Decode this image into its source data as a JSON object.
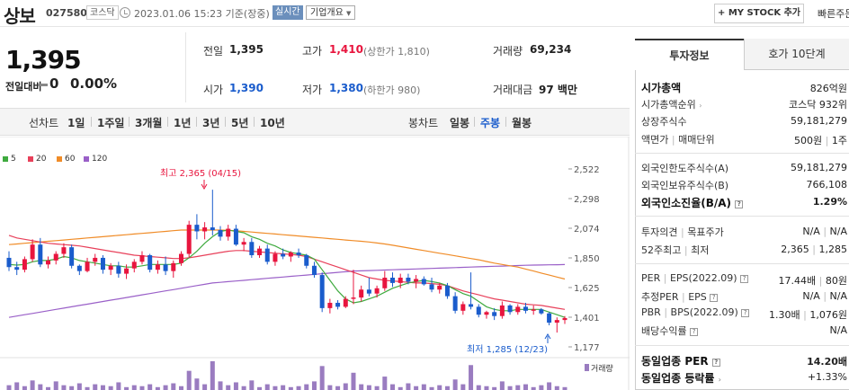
{
  "header": {
    "stock_name": "상보",
    "stock_code": "027580",
    "market": "코스닥",
    "datetime": "2023.01.06 15:23 기준(장중)",
    "realtime": "실시간",
    "corp_overview": "기업개요",
    "mystock": "+ MY STOCK 추가",
    "fast_order": "빠른주문"
  },
  "price": {
    "current": "1,395",
    "prev_label": "전일대비",
    "change": "0",
    "change_pct": "0.00%"
  },
  "quotes": {
    "prev_close_label": "전일",
    "prev_close": "1,395",
    "high_label": "고가",
    "high": "1,410",
    "upper_limit": "(상한가 1,810)",
    "volume_label": "거래량",
    "volume": "69,234",
    "open_label": "시가",
    "open": "1,390",
    "low_label": "저가",
    "low": "1,380",
    "lower_limit": "(하한가 980)",
    "amount_label": "거래대금",
    "amount": "97 백만"
  },
  "periods": {
    "line_label": "선차트",
    "items": [
      "1일",
      "1주일",
      "3개월",
      "1년",
      "3년",
      "5년",
      "10년"
    ],
    "candle_label": "봉차트",
    "candle_items": [
      "일봉",
      "주봉",
      "월봉"
    ],
    "candle_active": "주봉"
  },
  "chart_data": {
    "type": "line",
    "legend": [
      "5",
      "20",
      "60",
      "120"
    ],
    "colors": {
      "ma5": "#3faa3f",
      "ma20": "#e8405a",
      "ma60": "#f08c28",
      "ma120": "#9a60c8",
      "up": "#e8153e",
      "down": "#1a5ccc",
      "volume": "#9a7cc0"
    },
    "y_ticks": [
      "2,522",
      "2,298",
      "2,074",
      "1,850",
      "1,625",
      "1,401",
      "1,177"
    ],
    "ylim": [
      1177,
      2522
    ],
    "max_label": "최고 2,365 (04/15)",
    "min_label": "최저 1,285 (12/23)",
    "volume_label": "거래량",
    "candles": [
      [
        1850,
        1900,
        1750,
        1780
      ],
      [
        1780,
        1820,
        1720,
        1760
      ],
      [
        1760,
        1860,
        1740,
        1840
      ],
      [
        1840,
        1990,
        1820,
        1950
      ],
      [
        1950,
        2000,
        1780,
        1800
      ],
      [
        1800,
        1860,
        1770,
        1830
      ],
      [
        1830,
        1900,
        1800,
        1880
      ],
      [
        1880,
        1960,
        1850,
        1930
      ],
      [
        1930,
        1950,
        1770,
        1790
      ],
      [
        1790,
        1800,
        1720,
        1750
      ],
      [
        1750,
        1850,
        1740,
        1820
      ],
      [
        1820,
        1880,
        1790,
        1850
      ],
      [
        1850,
        1870,
        1730,
        1760
      ],
      [
        1760,
        1810,
        1720,
        1790
      ],
      [
        1790,
        1820,
        1700,
        1730
      ],
      [
        1730,
        1800,
        1690,
        1770
      ],
      [
        1770,
        1840,
        1740,
        1820
      ],
      [
        1820,
        1900,
        1800,
        1870
      ],
      [
        1870,
        1880,
        1740,
        1760
      ],
      [
        1760,
        1830,
        1730,
        1800
      ],
      [
        1800,
        1860,
        1720,
        1750
      ],
      [
        1750,
        1830,
        1700,
        1810
      ],
      [
        1810,
        1900,
        1790,
        1880
      ],
      [
        1880,
        2130,
        1850,
        2100
      ],
      [
        2100,
        2180,
        1990,
        2050
      ],
      [
        2050,
        2120,
        1990,
        2080
      ],
      [
        2080,
        2365,
        2020,
        2060
      ],
      [
        2060,
        2090,
        1980,
        2010
      ],
      [
        2010,
        2100,
        1980,
        2070
      ],
      [
        2070,
        2100,
        1940,
        1950
      ],
      [
        1950,
        2000,
        1900,
        1970
      ],
      [
        1970,
        2000,
        1850,
        1870
      ],
      [
        1870,
        1940,
        1850,
        1920
      ],
      [
        1920,
        1950,
        1800,
        1820
      ],
      [
        1820,
        1900,
        1790,
        1880
      ],
      [
        1880,
        1920,
        1840,
        1860
      ],
      [
        1860,
        1900,
        1820,
        1890
      ],
      [
        1890,
        1920,
        1850,
        1870
      ],
      [
        1870,
        1880,
        1770,
        1790
      ],
      [
        1790,
        1820,
        1700,
        1720
      ],
      [
        1720,
        1740,
        1440,
        1470
      ],
      [
        1470,
        1540,
        1430,
        1510
      ],
      [
        1510,
        1530,
        1460,
        1480
      ],
      [
        1480,
        1560,
        1470,
        1540
      ],
      [
        1540,
        1760,
        1500,
        1550
      ],
      [
        1550,
        1640,
        1520,
        1610
      ],
      [
        1610,
        1700,
        1560,
        1580
      ],
      [
        1580,
        1640,
        1550,
        1620
      ],
      [
        1620,
        1750,
        1600,
        1700
      ],
      [
        1700,
        1740,
        1630,
        1660
      ],
      [
        1660,
        1730,
        1620,
        1700
      ],
      [
        1700,
        1730,
        1650,
        1670
      ],
      [
        1670,
        1720,
        1620,
        1690
      ],
      [
        1690,
        1710,
        1640,
        1650
      ],
      [
        1650,
        1700,
        1590,
        1610
      ],
      [
        1610,
        1660,
        1580,
        1640
      ],
      [
        1640,
        1660,
        1540,
        1560
      ],
      [
        1560,
        1590,
        1430,
        1450
      ],
      [
        1450,
        1520,
        1420,
        1500
      ],
      [
        1500,
        1740,
        1460,
        1480
      ],
      [
        1480,
        1500,
        1400,
        1420
      ],
      [
        1420,
        1450,
        1390,
        1440
      ],
      [
        1440,
        1470,
        1380,
        1410
      ],
      [
        1410,
        1520,
        1390,
        1490
      ],
      [
        1490,
        1500,
        1420,
        1440
      ],
      [
        1440,
        1500,
        1420,
        1480
      ],
      [
        1480,
        1510,
        1430,
        1450
      ],
      [
        1450,
        1490,
        1420,
        1460
      ],
      [
        1460,
        1470,
        1420,
        1430
      ],
      [
        1430,
        1440,
        1340,
        1360
      ],
      [
        1360,
        1400,
        1285,
        1380
      ],
      [
        1380,
        1410,
        1350,
        1395
      ]
    ],
    "ma5": [
      1800,
      1795,
      1800,
      1820,
      1830,
      1830,
      1840,
      1860,
      1850,
      1830,
      1820,
      1810,
      1800,
      1790,
      1790,
      1780,
      1780,
      1790,
      1800,
      1800,
      1800,
      1800,
      1810,
      1850,
      1900,
      1960,
      2010,
      2050,
      2060,
      2050,
      2040,
      2010,
      1990,
      1960,
      1940,
      1910,
      1890,
      1880,
      1870,
      1840,
      1760,
      1680,
      1600,
      1540,
      1510,
      1520,
      1540,
      1560,
      1590,
      1620,
      1640,
      1660,
      1670,
      1680,
      1670,
      1660,
      1640,
      1610,
      1580,
      1560,
      1520,
      1480,
      1460,
      1450,
      1450,
      1460,
      1460,
      1460,
      1460,
      1440,
      1420,
      1400
    ],
    "ma20": [
      2020,
      2000,
      1990,
      1980,
      1970,
      1960,
      1955,
      1950,
      1945,
      1940,
      1930,
      1920,
      1910,
      1900,
      1890,
      1880,
      1870,
      1865,
      1860,
      1855,
      1850,
      1845,
      1845,
      1850,
      1860,
      1870,
      1880,
      1890,
      1900,
      1905,
      1905,
      1900,
      1895,
      1890,
      1885,
      1880,
      1875,
      1870,
      1860,
      1840,
      1820,
      1800,
      1780,
      1760,
      1740,
      1720,
      1700,
      1690,
      1680,
      1675,
      1670,
      1665,
      1660,
      1660,
      1655,
      1650,
      1640,
      1620,
      1600,
      1585,
      1570,
      1555,
      1540,
      1530,
      1520,
      1510,
      1500,
      1495,
      1490,
      1480,
      1470,
      1460
    ],
    "ma60": [
      1950,
      1955,
      1960,
      1965,
      1970,
      1975,
      1980,
      1985,
      1990,
      1995,
      2000,
      2005,
      2010,
      2015,
      2020,
      2025,
      2030,
      2035,
      2040,
      2045,
      2050,
      2055,
      2060,
      2060,
      2060,
      2060,
      2060,
      2060,
      2058,
      2055,
      2050,
      2045,
      2040,
      2035,
      2030,
      2025,
      2020,
      2015,
      2010,
      2005,
      2000,
      1995,
      1990,
      1985,
      1980,
      1975,
      1970,
      1962,
      1955,
      1945,
      1935,
      1925,
      1915,
      1905,
      1895,
      1885,
      1875,
      1865,
      1855,
      1845,
      1835,
      1822,
      1810,
      1800,
      1790,
      1780,
      1765,
      1750,
      1735,
      1720,
      1705,
      1690
    ],
    "ma120": [
      1400,
      1410,
      1420,
      1430,
      1440,
      1450,
      1460,
      1470,
      1480,
      1490,
      1500,
      1510,
      1520,
      1530,
      1540,
      1550,
      1560,
      1570,
      1580,
      1590,
      1600,
      1610,
      1620,
      1630,
      1640,
      1650,
      1660,
      1665,
      1670,
      1675,
      1680,
      1685,
      1690,
      1695,
      1700,
      1705,
      1710,
      1715,
      1720,
      1725,
      1730,
      1735,
      1740,
      1745,
      1750,
      1752,
      1754,
      1756,
      1758,
      1760,
      1762,
      1764,
      1766,
      1768,
      1770,
      1772,
      1774,
      1776,
      1778,
      1780,
      1782,
      1784,
      1786,
      1788,
      1790,
      1792,
      1794,
      1795,
      1796,
      1797,
      1798,
      1799
    ],
    "volume": [
      5,
      8,
      4,
      10,
      6,
      3,
      9,
      5,
      4,
      7,
      3,
      6,
      5,
      4,
      8,
      3,
      5,
      4,
      6,
      3,
      5,
      7,
      4,
      20,
      12,
      6,
      30,
      9,
      5,
      8,
      4,
      10,
      3,
      6,
      4,
      5,
      3,
      4,
      6,
      9,
      25,
      5,
      4,
      7,
      18,
      6,
      5,
      4,
      14,
      6,
      3,
      7,
      4,
      6,
      3,
      5,
      4,
      11,
      6,
      26,
      5,
      4,
      3,
      9,
      4,
      5,
      6,
      3,
      5,
      8,
      4,
      3
    ]
  },
  "tabs": {
    "invest_info": "투자정보",
    "ask_bid": "호가 10단계"
  },
  "info": {
    "market_cap_label": "시가총액",
    "market_cap": "826억원",
    "market_cap_rank_label": "시가총액순위",
    "market_cap_rank": "코스닥 932위",
    "shares_label": "상장주식수",
    "shares": "59,181,279",
    "par_label": "액면가",
    "trade_unit_label": "매매단위",
    "par_value": "500원",
    "trade_unit": "1주",
    "foreign_limit_label": "외국인한도주식수(A)",
    "foreign_limit": "59,181,279",
    "foreign_hold_label": "외국인보유주식수(B)",
    "foreign_hold": "766,108",
    "foreign_ratio_label": "외국인소진율(B/A)",
    "foreign_ratio": "1.29%",
    "opinion_label": "투자의견",
    "target_label": "목표주가",
    "opinion": "N/A",
    "target": "N/A",
    "week52_label": "52주최고",
    "week52_low_label": "최저",
    "week52_high": "2,365",
    "week52_low": "1,285",
    "per_label": "PER",
    "eps_label": "EPS(2022.09)",
    "per": "17.44배",
    "eps": "80원",
    "est_per_label": "추정PER",
    "est_eps_label": "EPS",
    "est_per": "N/A",
    "est_eps": "N/A",
    "pbr_label": "PBR",
    "bps_label": "BPS(2022.09)",
    "pbr": "1.30배",
    "bps": "1,076원",
    "dividend_label": "배당수익률",
    "dividend": "N/A",
    "sector_per_label": "동일업종 PER",
    "sector_per": "14.20배",
    "sector_rate_label": "동일업종 등락률",
    "sector_rate": "+1.33%"
  }
}
